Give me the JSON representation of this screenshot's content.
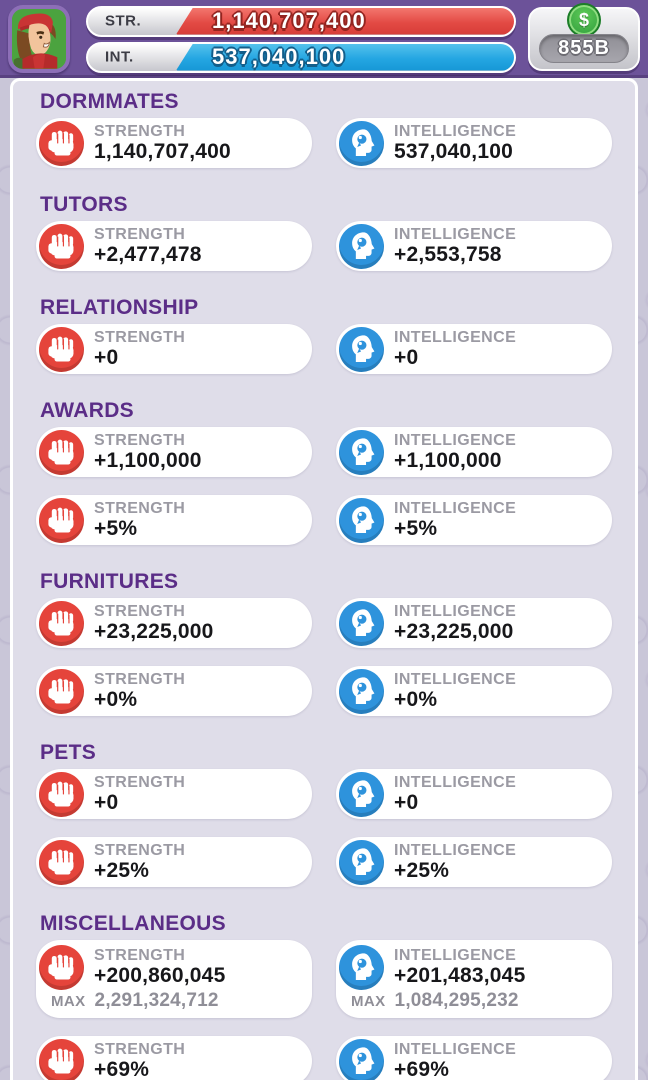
{
  "header": {
    "str_label": "STR.",
    "str_value": "1,140,707,400",
    "int_label": "INT.",
    "int_value": "537,040,100",
    "currency_symbol": "$",
    "money_value": "855B"
  },
  "stats": {
    "strength_label": "STRENGTH",
    "intelligence_label": "INTELLIGENCE",
    "max_label": "MAX",
    "sections": [
      {
        "title": "DORMMATES",
        "rows": [
          {
            "str": "1,140,707,400",
            "int": "537,040,100"
          }
        ]
      },
      {
        "title": "TUTORS",
        "rows": [
          {
            "str": "+2,477,478",
            "int": "+2,553,758"
          }
        ]
      },
      {
        "title": "RELATIONSHIP",
        "rows": [
          {
            "str": "+0",
            "int": "+0"
          }
        ]
      },
      {
        "title": "AWARDS",
        "rows": [
          {
            "str": "+1,100,000",
            "int": "+1,100,000"
          },
          {
            "str": "+5%",
            "int": "+5%"
          }
        ]
      },
      {
        "title": "FURNITURES",
        "rows": [
          {
            "str": "+23,225,000",
            "int": "+23,225,000"
          },
          {
            "str": "+0%",
            "int": "+0%"
          }
        ]
      },
      {
        "title": "PETS",
        "rows": [
          {
            "str": "+0",
            "int": "+0"
          },
          {
            "str": "+25%",
            "int": "+25%"
          }
        ]
      },
      {
        "title": "MISCELLANEOUS",
        "rows": [
          {
            "str": "+200,860,045",
            "str_max": "2,291,324,712",
            "int": "+201,483,045",
            "int_max": "1,084,295,232"
          },
          {
            "str": "+69%",
            "int": "+69%"
          }
        ]
      }
    ]
  },
  "colors": {
    "header_purple": "#6c5299",
    "strength_red": "#e5443b",
    "intelligence_blue": "#2e93dc",
    "section_title_purple": "#5b2d87",
    "coin_green": "#3aa743"
  }
}
